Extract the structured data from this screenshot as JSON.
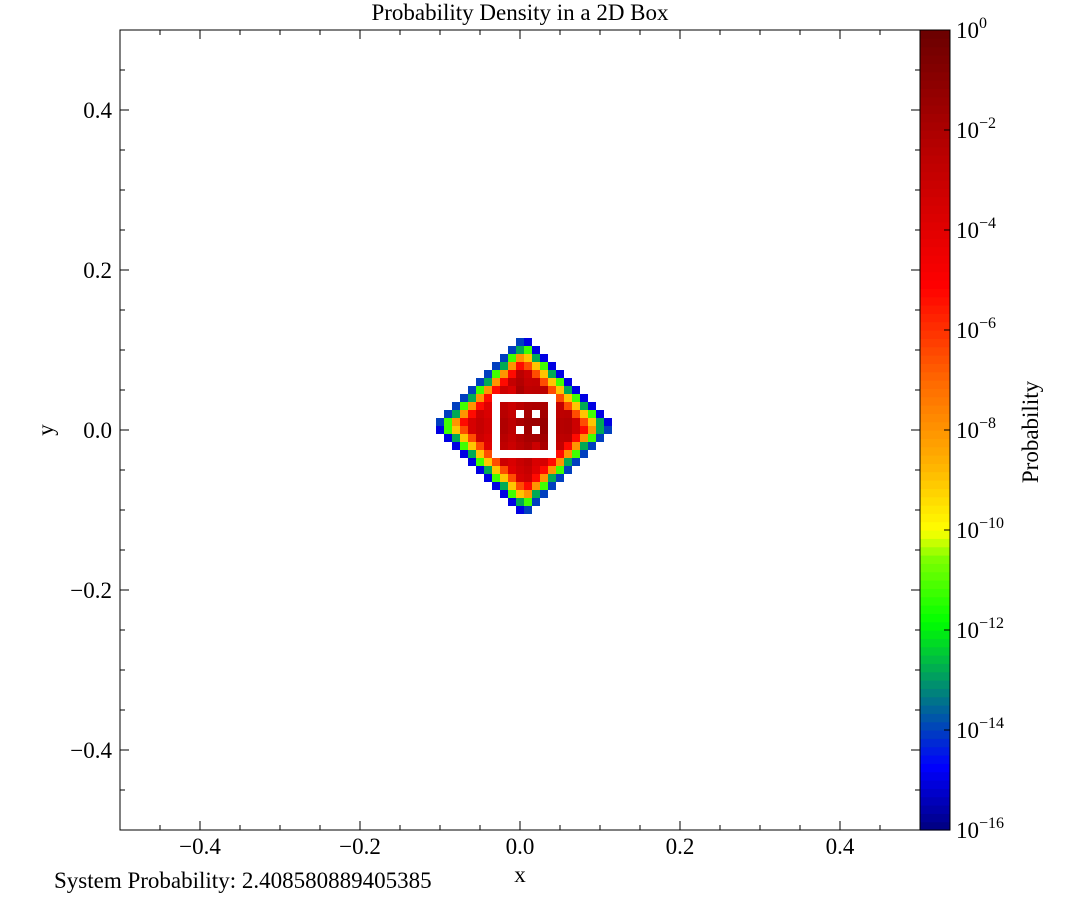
{
  "chart_data": {
    "type": "heatmap",
    "title": "Probability Density in a 2D Box",
    "xlabel": "x",
    "ylabel": "y",
    "xlim": [
      -0.5,
      0.5
    ],
    "ylim": [
      -0.5,
      0.5
    ],
    "x_ticks": [
      -0.4,
      -0.2,
      0.0,
      0.2,
      0.4
    ],
    "y_ticks": [
      -0.4,
      -0.2,
      0.0,
      0.2,
      0.4
    ],
    "x_tick_labels": [
      "−0.4",
      "−0.2",
      "0.0",
      "0.2",
      "0.4"
    ],
    "y_tick_labels": [
      "−0.4",
      "−0.2",
      "0.0",
      "0.2",
      "0.4"
    ],
    "grid_cells_per_axis": 100,
    "cell_width": 0.01,
    "distribution_center": [
      0.01,
      0.01
    ],
    "shape": "diamond (|x - 0.01| + |y - 0.01| ≤ 0.115)",
    "region_log10_probability": [
      {
        "region": "outer edge",
        "distance_range": [
          0.105,
          0.115
        ],
        "log10_probability_range": [
          -15,
          -14
        ]
      },
      {
        "region": "edge",
        "distance_range": [
          0.095,
          0.105
        ],
        "log10_probability_range": [
          -13,
          -11
        ]
      },
      {
        "region": "edge",
        "distance_range": [
          0.085,
          0.095
        ],
        "log10_probability_range": [
          -10,
          -8
        ]
      },
      {
        "region": "edge",
        "distance_range": [
          0.075,
          0.085
        ],
        "log10_probability_range": [
          -7,
          -5
        ]
      },
      {
        "region": "interior",
        "distance_range": [
          0.0,
          0.075
        ],
        "log10_probability_range": [
          -3,
          -1
        ]
      },
      {
        "region": "white ring and spots near center",
        "log10_probability": "below colour range"
      }
    ],
    "colorbar": {
      "label": "Probability",
      "scale": "log",
      "range": [
        1e-16,
        1
      ],
      "tick_exponents": [
        0,
        -2,
        -4,
        -6,
        -8,
        -10,
        -12,
        -14,
        -16
      ],
      "colormap_stops": [
        {
          "pos": 0.0,
          "color": "#00007f"
        },
        {
          "pos": 0.08,
          "color": "#0000ff"
        },
        {
          "pos": 0.17,
          "color": "#007f7f"
        },
        {
          "pos": 0.26,
          "color": "#00ff00"
        },
        {
          "pos": 0.34,
          "color": "#7fff00"
        },
        {
          "pos": 0.375,
          "color": "#ffff00"
        },
        {
          "pos": 0.46,
          "color": "#ffb000"
        },
        {
          "pos": 0.56,
          "color": "#ff6a00"
        },
        {
          "pos": 0.68,
          "color": "#ff0000"
        },
        {
          "pos": 0.85,
          "color": "#b80000"
        },
        {
          "pos": 1.0,
          "color": "#6a0000"
        }
      ]
    }
  },
  "footer": {
    "system_probability": "System Probability: 2.408580889405385"
  }
}
